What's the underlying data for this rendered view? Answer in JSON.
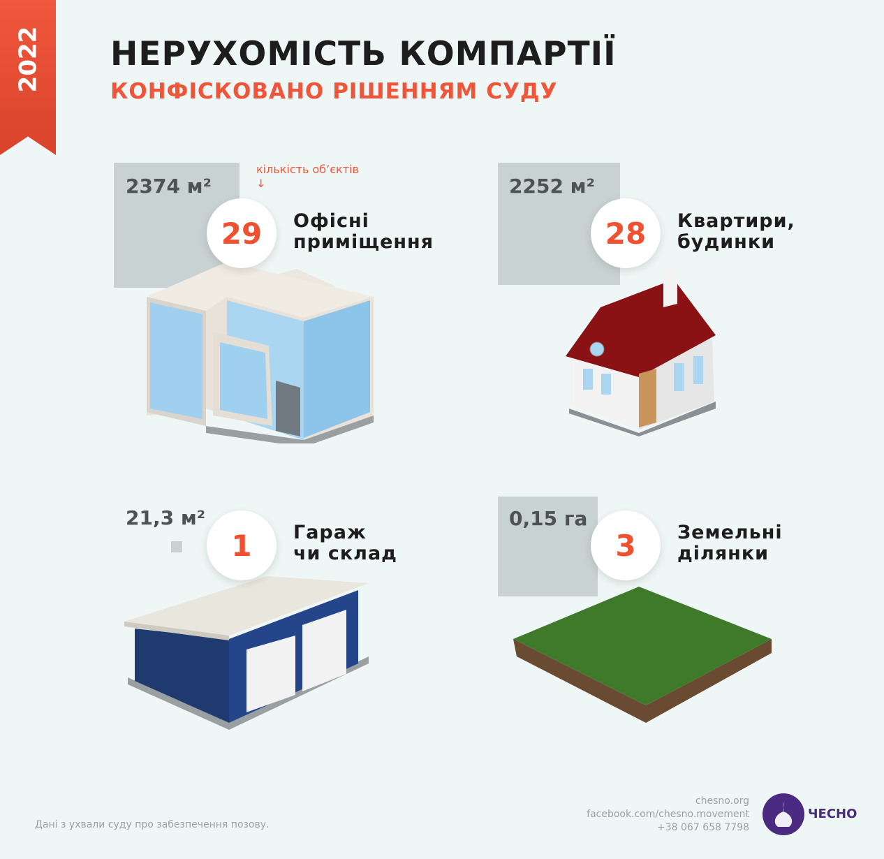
{
  "year": "2022",
  "title": "НЕРУХОМІСТЬ КОМПАРТІЇ",
  "subtitle": "КОНФІСКОВАНО РІШЕННЯМ СУДУ",
  "annotation": {
    "text": "кількість об’єктів",
    "arrow": "↓"
  },
  "items": [
    {
      "area": "2374 м²",
      "count": "29",
      "label": [
        "Офісні",
        "приміщення"
      ],
      "icon": "office-building"
    },
    {
      "area": "2252 м²",
      "count": "28",
      "label": [
        "Квартири,",
        "будинки"
      ],
      "icon": "house"
    },
    {
      "area": "21,3 м²",
      "count": "1",
      "label": [
        "Гараж",
        "чи склад"
      ],
      "icon": "garage"
    },
    {
      "area": "0,15 га",
      "count": "3",
      "label": [
        "Земельні",
        "ділянки"
      ],
      "icon": "land-plot"
    }
  ],
  "footer": {
    "note": "Дані з ухвали суду про забезпечення позову.",
    "site": "chesno.org",
    "facebook": "facebook.com/chesno.movement",
    "phone": "+38 067 658 7798",
    "brand": "ЧЕСНО"
  },
  "colors": {
    "accent": "#f0553a",
    "brand": "#4b2a82",
    "area_square": "#c9d2d2",
    "background": "#eef7f5"
  }
}
